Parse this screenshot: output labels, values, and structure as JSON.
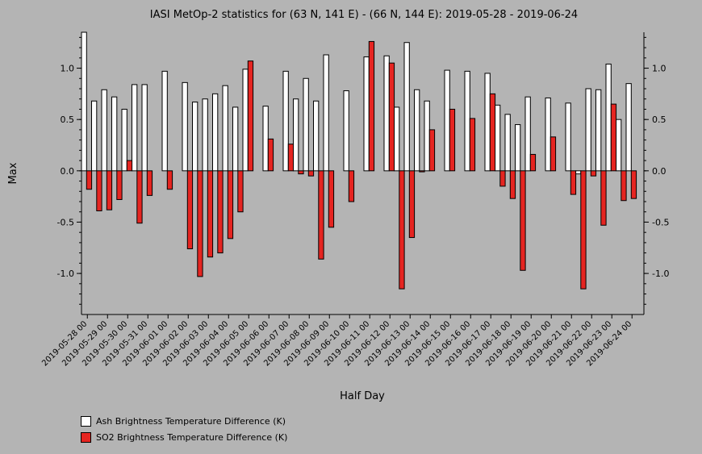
{
  "chart_data": {
    "type": "bar",
    "title": "IASI MetOp-2 statistics for (63 N, 141 E) - (66 N, 144 E): 2019-05-28 - 2019-06-24",
    "xlabel": "Half Day",
    "ylabel": "Max",
    "ylim": [
      -1.4,
      1.35
    ],
    "yticks": [
      -1.0,
      -0.5,
      0.0,
      0.5,
      1.0
    ],
    "ytick_labels": [
      "-1.0",
      "-0.5",
      "0.0",
      "0.5",
      "1.0"
    ],
    "grid": false,
    "legend_position": "bottom-left",
    "tick_labels": [
      "2019-05-28 00",
      "2019-05-29 00",
      "2019-05-30 00",
      "2019-05-31 00",
      "2019-06-01 00",
      "2019-06-02 00",
      "2019-06-03 00",
      "2019-06-04 00",
      "2019-06-05 00",
      "2019-06-06 00",
      "2019-06-07 00",
      "2019-06-08 00",
      "2019-06-09 00",
      "2019-06-10 00",
      "2019-06-11 00",
      "2019-06-12 00",
      "2019-06-13 00",
      "2019-06-14 00",
      "2019-06-15 00",
      "2019-06-16 00",
      "2019-06-17 00",
      "2019-06-18 00",
      "2019-06-19 00",
      "2019-06-20 00",
      "2019-06-21 00",
      "2019-06-22 00",
      "2019-06-23 00",
      "2019-06-24 00"
    ],
    "series": [
      {
        "name": "Ash Brightness Temperature Difference (K)",
        "color": "#ffffff",
        "values": [
          1.35,
          0.68,
          0.79,
          0.72,
          0.6,
          0.84,
          0.84,
          null,
          0.97,
          null,
          0.86,
          0.67,
          0.7,
          0.75,
          0.83,
          0.62,
          0.99,
          null,
          0.63,
          null,
          0.97,
          0.7,
          0.9,
          0.68,
          1.13,
          null,
          0.78,
          null,
          1.11,
          null,
          1.12,
          0.62,
          1.25,
          0.79,
          0.68,
          null,
          0.98,
          null,
          0.97,
          null,
          0.95,
          0.64,
          0.55,
          0.45,
          0.72,
          null,
          0.71,
          null,
          0.66,
          -0.03,
          0.8,
          0.79,
          1.04,
          0.5,
          0.85,
          null
        ]
      },
      {
        "name": "SO2 Brightness Temperature Difference (K)",
        "color": "#e52521",
        "values": [
          -0.18,
          -0.39,
          -0.38,
          -0.28,
          0.1,
          -0.51,
          -0.24,
          null,
          -0.18,
          null,
          -0.76,
          -1.03,
          -0.84,
          -0.8,
          -0.66,
          -0.4,
          1.07,
          null,
          0.31,
          null,
          0.26,
          -0.03,
          -0.05,
          -0.86,
          -0.55,
          null,
          -0.3,
          null,
          1.26,
          null,
          1.05,
          -1.15,
          -0.65,
          -0.01,
          0.4,
          null,
          0.6,
          null,
          0.51,
          null,
          0.75,
          -0.15,
          -0.27,
          -0.97,
          0.16,
          null,
          0.33,
          null,
          -0.23,
          -1.15,
          -0.05,
          -0.53,
          0.65,
          -0.29,
          -0.27,
          null
        ]
      }
    ]
  }
}
